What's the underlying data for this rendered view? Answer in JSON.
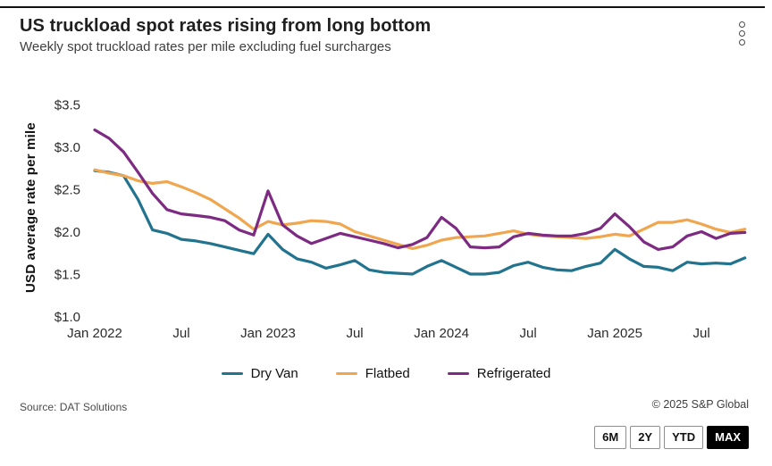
{
  "header": {
    "title": "US truckload spot rates rising from long bottom",
    "subtitle": "Weekly spot truckload rates per mile excluding fuel surcharges"
  },
  "icons": {
    "menu": "vertical-ellipsis"
  },
  "chart_data": {
    "type": "line",
    "title": "US truckload spot rates rising from long bottom",
    "subtitle": "Weekly spot truckload rates per mile excluding fuel surcharges",
    "ylabel": "USD average rate per mile",
    "xlabel": "",
    "ylim": [
      1.0,
      3.5
    ],
    "grid": false,
    "legend_position": "bottom",
    "y_ticks": {
      "values": [
        1.0,
        1.5,
        2.0,
        2.5,
        3.0,
        3.5
      ],
      "labels": [
        "$1.0",
        "$1.5",
        "$2.0",
        "$2.5",
        "$3.0",
        "$3.5"
      ]
    },
    "x_ticks": {
      "month_indices": [
        0,
        6,
        12,
        18,
        24,
        30,
        36,
        42
      ],
      "labels": [
        "Jan 2022",
        "Jul",
        "Jan 2023",
        "Jul",
        "Jan 2024",
        "Jul",
        "Jan 2025",
        "Jul"
      ]
    },
    "months": [
      "2022-01",
      "2022-02",
      "2022-03",
      "2022-04",
      "2022-05",
      "2022-06",
      "2022-07",
      "2022-08",
      "2022-09",
      "2022-10",
      "2022-11",
      "2022-12",
      "2023-01",
      "2023-02",
      "2023-03",
      "2023-04",
      "2023-05",
      "2023-06",
      "2023-07",
      "2023-08",
      "2023-09",
      "2023-10",
      "2023-11",
      "2023-12",
      "2024-01",
      "2024-02",
      "2024-03",
      "2024-04",
      "2024-05",
      "2024-06",
      "2024-07",
      "2024-08",
      "2024-09",
      "2024-10",
      "2024-11",
      "2024-12",
      "2025-01",
      "2025-02",
      "2025-03",
      "2025-04",
      "2025-05",
      "2025-06",
      "2025-07",
      "2025-08",
      "2025-09",
      "2025-10"
    ],
    "series": [
      {
        "name": "Dry Van",
        "color": "#21738e",
        "values": [
          2.72,
          2.7,
          2.66,
          2.38,
          2.02,
          1.98,
          1.91,
          1.89,
          1.86,
          1.82,
          1.78,
          1.74,
          1.97,
          1.79,
          1.68,
          1.64,
          1.57,
          1.61,
          1.66,
          1.55,
          1.52,
          1.51,
          1.5,
          1.59,
          1.66,
          1.58,
          1.5,
          1.5,
          1.52,
          1.6,
          1.64,
          1.58,
          1.55,
          1.54,
          1.59,
          1.63,
          1.79,
          1.68,
          1.59,
          1.58,
          1.54,
          1.64,
          1.62,
          1.63,
          1.62,
          1.69
        ]
      },
      {
        "name": "Flatbed",
        "color": "#f0a64e",
        "values": [
          2.73,
          2.69,
          2.66,
          2.6,
          2.57,
          2.59,
          2.53,
          2.46,
          2.38,
          2.27,
          2.16,
          2.03,
          2.12,
          2.08,
          2.1,
          2.13,
          2.12,
          2.09,
          2.0,
          1.95,
          1.9,
          1.85,
          1.8,
          1.84,
          1.9,
          1.93,
          1.94,
          1.95,
          1.98,
          2.01,
          1.97,
          1.95,
          1.94,
          1.93,
          1.92,
          1.94,
          1.97,
          1.95,
          2.03,
          2.11,
          2.11,
          2.14,
          2.09,
          2.03,
          1.99,
          2.03
        ]
      },
      {
        "name": "Refrigerated",
        "color": "#7d2a82",
        "values": [
          3.2,
          3.1,
          2.94,
          2.7,
          2.45,
          2.26,
          2.21,
          2.19,
          2.17,
          2.13,
          2.02,
          1.96,
          2.48,
          2.08,
          1.95,
          1.86,
          1.92,
          1.98,
          1.94,
          1.9,
          1.86,
          1.81,
          1.85,
          1.93,
          2.17,
          2.04,
          1.82,
          1.81,
          1.82,
          1.94,
          1.98,
          1.96,
          1.95,
          1.95,
          1.98,
          2.04,
          2.21,
          2.06,
          1.88,
          1.79,
          1.82,
          1.95,
          2.0,
          1.92,
          1.98,
          1.99
        ]
      }
    ]
  },
  "footer": {
    "source": "Source: DAT Solutions",
    "copyright": "© 2025 S&P Global"
  },
  "range_buttons": [
    {
      "label": "6M",
      "active": false
    },
    {
      "label": "2Y",
      "active": false
    },
    {
      "label": "YTD",
      "active": false
    },
    {
      "label": "MAX",
      "active": true
    }
  ]
}
